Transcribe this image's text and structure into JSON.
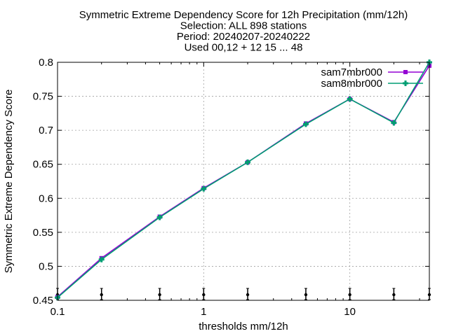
{
  "chart_data": {
    "type": "line",
    "title_lines": [
      "Symmetric Extreme Dependency Score  for 12h Precipitation (mm/12h)",
      "Selection: ALL    898 stations",
      "Period: 20240207-20240222",
      "Used 00,12 + 12 15 ... 48"
    ],
    "xlabel": "thresholds mm/12h",
    "ylabel": "Symmetric Extreme Dependency Score",
    "x_scale": "log",
    "xlim": [
      0.1,
      35
    ],
    "ylim": [
      0.45,
      0.8
    ],
    "x_ticks": [
      0.1,
      1,
      10
    ],
    "x_tick_labels": [
      "0.1",
      "1",
      "10"
    ],
    "y_ticks": [
      0.45,
      0.5,
      0.55,
      0.6,
      0.65,
      0.7,
      0.75,
      0.8
    ],
    "y_tick_labels": [
      "0.45",
      "0.5",
      "0.55",
      "0.6",
      "0.65",
      "0.7",
      "0.75",
      "0.8"
    ],
    "grid": true,
    "legend_position": "top-right",
    "x": [
      0.1,
      0.2,
      0.5,
      1,
      2,
      5,
      10,
      20,
      35
    ],
    "series": [
      {
        "name": "sam7mbr000",
        "color": "#9400d3",
        "marker": "square",
        "values": [
          0.455,
          0.512,
          0.573,
          0.615,
          0.653,
          0.71,
          0.746,
          0.712,
          0.795
        ]
      },
      {
        "name": "sam8mbr000",
        "color": "#009e73",
        "marker": "cross",
        "values": [
          0.454,
          0.51,
          0.572,
          0.614,
          0.653,
          0.709,
          0.746,
          0.711,
          0.8
        ]
      }
    ],
    "error_bar_x": [
      0.1,
      0.2,
      0.5,
      1,
      2,
      5,
      10,
      20,
      35
    ]
  }
}
